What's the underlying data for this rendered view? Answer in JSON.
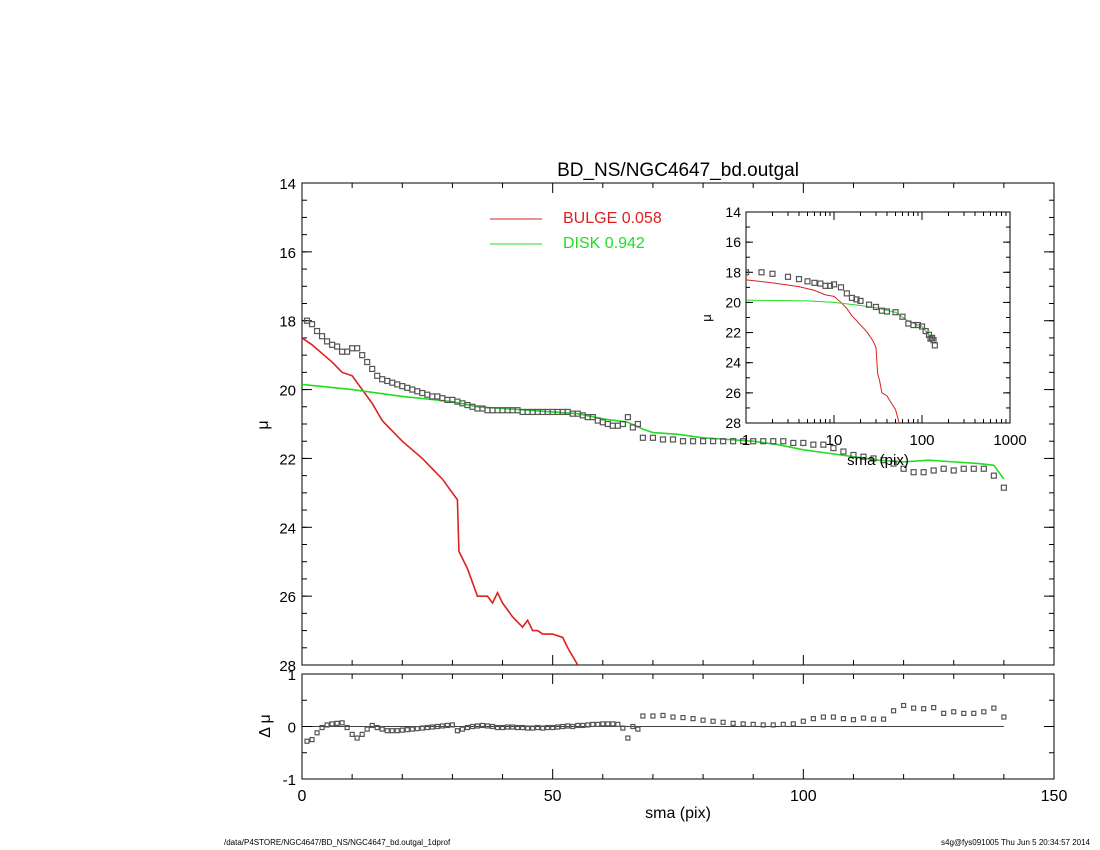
{
  "chart_data": [
    {
      "type": "line",
      "title": "BD_NS/NGC4647_bd.outgal",
      "xlabel": "",
      "ylabel": "μ",
      "xlim": [
        0,
        150
      ],
      "ylim": [
        14,
        28
      ],
      "y_inverted": true,
      "y_ticks": [
        "14",
        "16",
        "18",
        "20",
        "22",
        "24",
        "26",
        "28"
      ],
      "legend": [
        "BULGE 0.058",
        "DISK 0.942"
      ],
      "legend_position": "top-center",
      "series": [
        {
          "name": "BULGE 0.058",
          "color": "#dd2020",
          "style": "line",
          "x": [
            0,
            2,
            4,
            6,
            8,
            10,
            12,
            14,
            16,
            18,
            20,
            22,
            24,
            26,
            28,
            31,
            31.3,
            33,
            35,
            37,
            38,
            39,
            40,
            42,
            44,
            45,
            46,
            47,
            48,
            50,
            52,
            53,
            55
          ],
          "y": [
            18.5,
            18.7,
            18.95,
            19.2,
            19.5,
            19.6,
            20.0,
            20.4,
            20.9,
            21.2,
            21.5,
            21.75,
            22.0,
            22.3,
            22.6,
            23.2,
            24.7,
            25.2,
            26.0,
            26.0,
            26.2,
            25.9,
            26.2,
            26.6,
            26.9,
            26.7,
            27.0,
            27.0,
            27.1,
            27.1,
            27.2,
            27.5,
            28.0
          ]
        },
        {
          "name": "DISK 0.942",
          "color": "#22dd22",
          "style": "line",
          "x": [
            0,
            10,
            20,
            30,
            35,
            40,
            50,
            55,
            60,
            65,
            68,
            70,
            75,
            80,
            85,
            90,
            95,
            100,
            105,
            110,
            115,
            120,
            125,
            130,
            135,
            138,
            140
          ],
          "y": [
            19.85,
            20.0,
            20.2,
            20.35,
            20.5,
            20.55,
            20.65,
            20.7,
            20.85,
            20.95,
            21.15,
            21.25,
            21.3,
            21.4,
            21.45,
            21.5,
            21.6,
            21.75,
            21.85,
            21.95,
            22.05,
            22.1,
            22.05,
            22.1,
            22.15,
            22.2,
            22.6
          ]
        },
        {
          "name": "",
          "color": "#555555",
          "style": "markers",
          "x": [
            1,
            2,
            3,
            4,
            5,
            6,
            7,
            8,
            9,
            10,
            11,
            12,
            13,
            14,
            15,
            16,
            17,
            18,
            19,
            20,
            21,
            22,
            23,
            24,
            25,
            26,
            27,
            28,
            29,
            30,
            31,
            32,
            33,
            34,
            35,
            36,
            37,
            38,
            39,
            40,
            41,
            42,
            43,
            44,
            45,
            46,
            47,
            48,
            49,
            50,
            51,
            52,
            53,
            54,
            55,
            56,
            57,
            58,
            59,
            60,
            61,
            62,
            63,
            64,
            65,
            66,
            67,
            68,
            70,
            72,
            74,
            76,
            78,
            80,
            82,
            84,
            86,
            88,
            90,
            92,
            94,
            96,
            98,
            100,
            102,
            104,
            106,
            108,
            110,
            112,
            114,
            116,
            118,
            120,
            122,
            124,
            126,
            128,
            130,
            132,
            134,
            136,
            138,
            140
          ],
          "y": [
            18.0,
            18.1,
            18.3,
            18.45,
            18.6,
            18.7,
            18.75,
            18.9,
            18.9,
            18.8,
            18.8,
            19.0,
            19.2,
            19.4,
            19.6,
            19.7,
            19.75,
            19.8,
            19.85,
            19.9,
            19.95,
            20.0,
            20.05,
            20.1,
            20.15,
            20.2,
            20.2,
            20.25,
            20.3,
            20.3,
            20.35,
            20.4,
            20.45,
            20.5,
            20.55,
            20.55,
            20.6,
            20.6,
            20.6,
            20.6,
            20.6,
            20.6,
            20.6,
            20.65,
            20.65,
            20.65,
            20.65,
            20.65,
            20.65,
            20.65,
            20.65,
            20.65,
            20.65,
            20.7,
            20.7,
            20.75,
            20.8,
            20.8,
            20.9,
            20.95,
            21.0,
            21.05,
            21.05,
            21.0,
            20.8,
            21.1,
            21.0,
            21.4,
            21.4,
            21.45,
            21.45,
            21.5,
            21.5,
            21.5,
            21.5,
            21.5,
            21.5,
            21.5,
            21.5,
            21.5,
            21.5,
            21.5,
            21.55,
            21.55,
            21.6,
            21.6,
            21.7,
            21.8,
            21.9,
            21.95,
            22.0,
            22.05,
            22.15,
            22.3,
            22.4,
            22.4,
            22.35,
            22.3,
            22.35,
            22.3,
            22.3,
            22.3,
            22.5,
            22.85
          ]
        }
      ]
    },
    {
      "type": "line",
      "title": "",
      "xlabel": "sma (pix)",
      "ylabel": "μ",
      "x_scale": "log",
      "xlim": [
        1,
        1000
      ],
      "ylim": [
        14,
        28
      ],
      "y_inverted": true,
      "x_ticks": [
        "1",
        "10",
        "100",
        "1000"
      ],
      "y_ticks": [
        "14",
        "16",
        "18",
        "20",
        "22",
        "24",
        "26",
        "28"
      ],
      "series": [
        {
          "name": "",
          "color": "#dd2020",
          "style": "line",
          "x": [
            1,
            2,
            4,
            6,
            8,
            10,
            12,
            14,
            16,
            18,
            20,
            22,
            24,
            26,
            28,
            30,
            31.3,
            33,
            35,
            40,
            45,
            50,
            55
          ],
          "y": [
            18.5,
            18.7,
            18.95,
            19.2,
            19.5,
            19.6,
            20.0,
            20.4,
            20.9,
            21.2,
            21.5,
            21.75,
            22.0,
            22.3,
            22.6,
            23.0,
            24.7,
            25.2,
            26.0,
            26.2,
            26.7,
            27.1,
            28.0
          ]
        },
        {
          "name": "",
          "color": "#22dd22",
          "style": "line",
          "x": [
            1,
            5,
            10,
            20,
            30,
            50,
            70,
            100,
            140
          ],
          "y": [
            19.85,
            19.9,
            20.0,
            20.2,
            20.35,
            20.65,
            21.25,
            21.6,
            22.6
          ]
        },
        {
          "name": "",
          "color": "#555555",
          "style": "markers",
          "x": [
            1,
            1.5,
            2,
            3,
            4,
            5,
            6,
            7,
            8,
            9,
            10,
            12,
            14,
            16,
            18,
            20,
            25,
            30,
            35,
            40,
            50,
            60,
            70,
            80,
            90,
            100,
            110,
            120,
            125,
            130,
            135,
            140
          ],
          "y": [
            18.0,
            18.0,
            18.1,
            18.3,
            18.45,
            18.6,
            18.7,
            18.75,
            18.9,
            18.9,
            18.8,
            19.0,
            19.4,
            19.7,
            19.8,
            19.9,
            20.15,
            20.3,
            20.55,
            20.6,
            20.65,
            20.95,
            21.4,
            21.5,
            21.5,
            21.6,
            21.9,
            22.15,
            22.4,
            22.35,
            22.5,
            22.85
          ]
        }
      ]
    },
    {
      "type": "scatter",
      "title": "",
      "xlabel": "sma (pix)",
      "ylabel": "Δ μ",
      "xlim": [
        0,
        150
      ],
      "ylim": [
        -1,
        1
      ],
      "x_ticks": [
        "0",
        "50",
        "100",
        "150"
      ],
      "y_ticks": [
        "1",
        "0",
        "-1"
      ],
      "series": [
        {
          "name": "",
          "color": "#555555",
          "style": "markers",
          "x": [
            1,
            2,
            3,
            4,
            5,
            6,
            7,
            8,
            9,
            10,
            11,
            12,
            13,
            14,
            15,
            16,
            17,
            18,
            19,
            20,
            21,
            22,
            23,
            24,
            25,
            26,
            27,
            28,
            29,
            30,
            31,
            32,
            33,
            34,
            35,
            36,
            37,
            38,
            39,
            40,
            41,
            42,
            43,
            44,
            45,
            46,
            47,
            48,
            49,
            50,
            51,
            52,
            53,
            54,
            55,
            56,
            57,
            58,
            59,
            60,
            61,
            62,
            63,
            64,
            65,
            66,
            67,
            68,
            70,
            72,
            74,
            76,
            78,
            80,
            82,
            84,
            86,
            88,
            90,
            92,
            94,
            96,
            98,
            100,
            102,
            104,
            106,
            108,
            110,
            112,
            114,
            116,
            118,
            120,
            122,
            124,
            126,
            128,
            130,
            132,
            134,
            136,
            138,
            140
          ],
          "y": [
            -0.28,
            -0.25,
            -0.12,
            -0.02,
            0.03,
            0.05,
            0.06,
            0.07,
            -0.02,
            -0.15,
            -0.22,
            -0.15,
            -0.05,
            0.02,
            -0.02,
            -0.05,
            -0.08,
            -0.08,
            -0.08,
            -0.07,
            -0.06,
            -0.05,
            -0.04,
            -0.03,
            -0.02,
            -0.01,
            0.0,
            0.01,
            0.02,
            0.03,
            -0.08,
            -0.05,
            -0.02,
            0.0,
            0.01,
            0.02,
            0.01,
            0.0,
            -0.02,
            -0.02,
            -0.01,
            -0.01,
            -0.02,
            -0.02,
            -0.03,
            -0.03,
            -0.02,
            -0.03,
            -0.02,
            -0.02,
            -0.01,
            0.0,
            0.01,
            0.0,
            0.02,
            0.02,
            0.03,
            0.04,
            0.04,
            0.05,
            0.05,
            0.05,
            0.04,
            -0.03,
            -0.22,
            0.0,
            -0.05,
            0.2,
            0.2,
            0.21,
            0.18,
            0.17,
            0.15,
            0.12,
            0.1,
            0.08,
            0.06,
            0.05,
            0.04,
            0.03,
            0.03,
            0.04,
            0.05,
            0.1,
            0.15,
            0.18,
            0.18,
            0.15,
            0.13,
            0.16,
            0.14,
            0.14,
            0.3,
            0.4,
            0.35,
            0.34,
            0.36,
            0.25,
            0.28,
            0.25,
            0.25,
            0.28,
            0.35,
            0.18
          ]
        }
      ]
    }
  ],
  "footer": {
    "left": "/data/P4STORE/NGC4647/BD_NS/NGC4647_bd.outgal_1dprof",
    "right": "s4g@fys091005  Thu Jun  5 20:34:57 2014"
  }
}
